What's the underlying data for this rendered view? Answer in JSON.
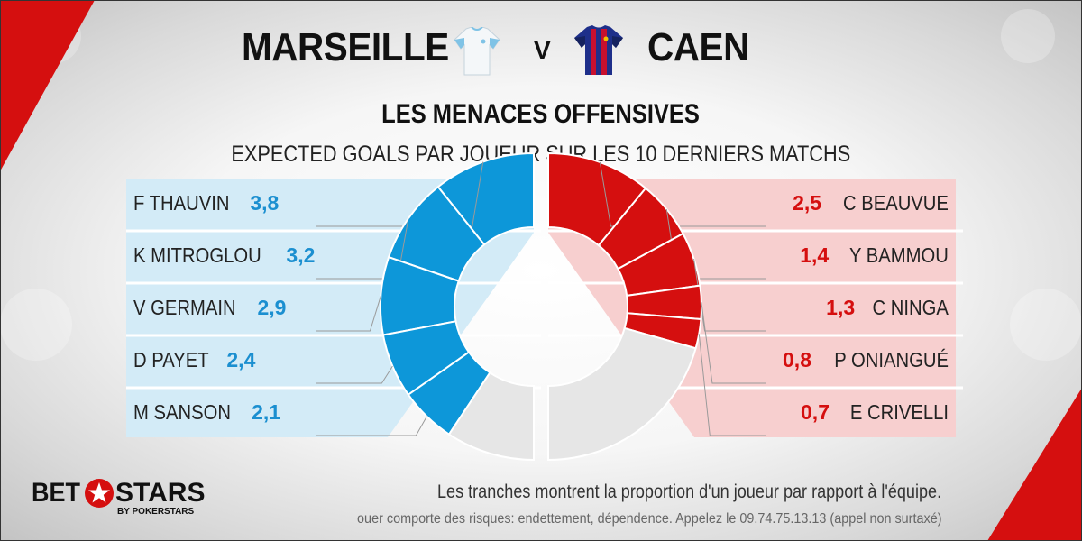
{
  "header": {
    "home_team": "MARSEILLE",
    "versus": "V",
    "away_team": "CAEN",
    "home_jersey_icon": "marseille-jersey-icon",
    "away_jersey_icon": "caen-jersey-icon"
  },
  "title": "LES MENACES OFFENSIVES",
  "subtitle": "EXPECTED GOALS PAR JOUEUR SUR LES 10 DERNIERS MATCHS",
  "colors": {
    "home": "#0d97d9",
    "home_panel": "#d3ebf7",
    "away": "#d50f0f",
    "away_panel": "#f7cfcf",
    "remainder": "#e6e6e6"
  },
  "chart_data": {
    "type": "donut",
    "title": "LES MENACES OFFENSIVES",
    "subtitle": "EXPECTED GOALS PAR JOUEUR SUR LES 10 DERNIERS MATCHS",
    "series": [
      {
        "name": "MARSEILLE",
        "players": [
          {
            "name": "F THAUVIN",
            "value": "3,8",
            "xg": 3.8
          },
          {
            "name": "K MITROGLOU",
            "value": "3,2",
            "xg": 3.2
          },
          {
            "name": "V GERMAIN",
            "value": "2,9",
            "xg": 2.9
          },
          {
            "name": "D PAYET",
            "value": "2,4",
            "xg": 2.4
          },
          {
            "name": "M SANSON",
            "value": "2,1",
            "xg": 2.1
          }
        ],
        "remainder_xg": 3.3
      },
      {
        "name": "CAEN",
        "players": [
          {
            "name": "C BEAUVUE",
            "value": "2,5",
            "xg": 2.5
          },
          {
            "name": "Y BAMMOU",
            "value": "1,4",
            "xg": 1.4
          },
          {
            "name": "C NINGA",
            "value": "1,3",
            "xg": 1.3
          },
          {
            "name": "P ONIANGUÉ",
            "value": "0,8",
            "xg": 0.8
          },
          {
            "name": "E CRIVELLI",
            "value": "0,7",
            "xg": 0.7
          }
        ],
        "remainder_xg": 4.7
      }
    ]
  },
  "footer": {
    "logo_left": "BET",
    "logo_right": "STARS",
    "logo_sub": "BY POKERSTARS",
    "note": "Les tranches montrent la proportion d'un joueur par rapport à l'équipe.",
    "disclaimer": "ouer comporte des risques: endettement, dépendence. Appelez le 09.74.75.13.13 (appel non surtaxé)"
  }
}
